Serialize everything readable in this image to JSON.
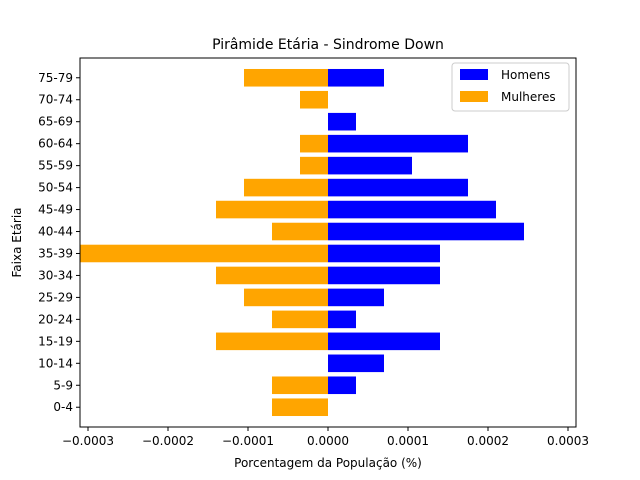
{
  "chart_data": {
    "type": "bar",
    "orientation": "horizontal",
    "title": "Pirâmide Etária - Sindrome Down",
    "xlabel": "Porcentagem da População (%)",
    "ylabel": "Faixa Etária",
    "xlim": [
      -0.00031,
      0.00031
    ],
    "xticks": [
      -0.0003,
      -0.0002,
      -0.0001,
      0.0,
      0.0001,
      0.0002,
      0.0003
    ],
    "xtick_labels": [
      "−0.0003",
      "−0.0002",
      "−0.0001",
      "0.0000",
      "0.0001",
      "0.0002",
      "0.0003"
    ],
    "grid": false,
    "legend_position": "top-right",
    "categories": [
      "0-4",
      "5-9",
      "10-14",
      "15-19",
      "20-24",
      "25-29",
      "30-34",
      "35-39",
      "40-44",
      "45-49",
      "50-54",
      "55-59",
      "60-64",
      "65-69",
      "70-74",
      "75-79"
    ],
    "series": [
      {
        "name": "Homens",
        "color": "#0000ff",
        "values": [
          0,
          3.5e-05,
          7e-05,
          0.00014,
          3.5e-05,
          7e-05,
          0.00014,
          0.00014,
          0.000245,
          0.00021,
          0.000175,
          0.000105,
          0.000175,
          3.5e-05,
          0,
          7e-05
        ]
      },
      {
        "name": "Mulheres",
        "color": "#ffa500",
        "values": [
          -7e-05,
          -7e-05,
          0,
          -0.00014,
          -7e-05,
          -0.000105,
          -0.00014,
          -0.00035,
          -7e-05,
          -0.00014,
          -0.000105,
          -3.5e-05,
          -3.5e-05,
          0,
          -3.5e-05,
          -0.000105
        ]
      }
    ]
  }
}
